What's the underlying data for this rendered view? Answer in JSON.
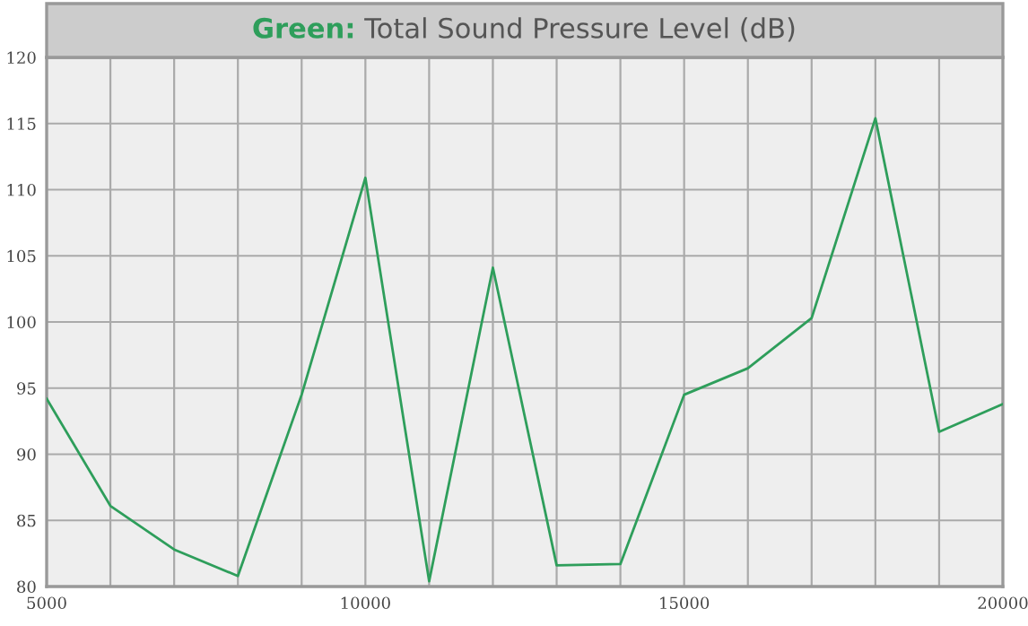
{
  "chart_data": {
    "type": "line",
    "title": "Green: Total Sound Pressure Level (dB)",
    "x": [
      5000,
      6000,
      7000,
      8000,
      9000,
      10000,
      11000,
      12000,
      13000,
      14000,
      15000,
      16000,
      17000,
      18000,
      19000,
      20000
    ],
    "series": [
      {
        "color": "#2e9e5b",
        "values": [
          94.2,
          86.1,
          82.8,
          80.8,
          94.5,
          110.9,
          80.4,
          104.1,
          81.6,
          81.7,
          94.5,
          96.5,
          100.3,
          115.4,
          91.7,
          93.8
        ]
      }
    ],
    "xlim": [
      5000,
      20000
    ],
    "xticks": [
      5000,
      {
        "value": 6000,
        "label": null
      },
      {
        "value": 7000,
        "label": null
      },
      {
        "value": 8000,
        "label": null
      },
      {
        "value": 9000,
        "label": null
      },
      10000,
      {
        "value": 11000,
        "label": null
      },
      {
        "value": 12000,
        "label": null
      },
      {
        "value": 13000,
        "label": null
      },
      {
        "value": 14000,
        "label": null
      },
      15000,
      {
        "value": 16000,
        "label": null
      },
      {
        "value": 17000,
        "label": null
      },
      {
        "value": 18000,
        "label": null
      },
      {
        "value": 19000,
        "label": null
      },
      20000
    ],
    "ylim": [
      80,
      120
    ],
    "yticks": [
      80,
      85,
      90,
      95,
      100,
      105,
      110,
      115,
      120
    ],
    "grid": true,
    "legend": false,
    "marker": "none",
    "line_style": "solid"
  }
}
